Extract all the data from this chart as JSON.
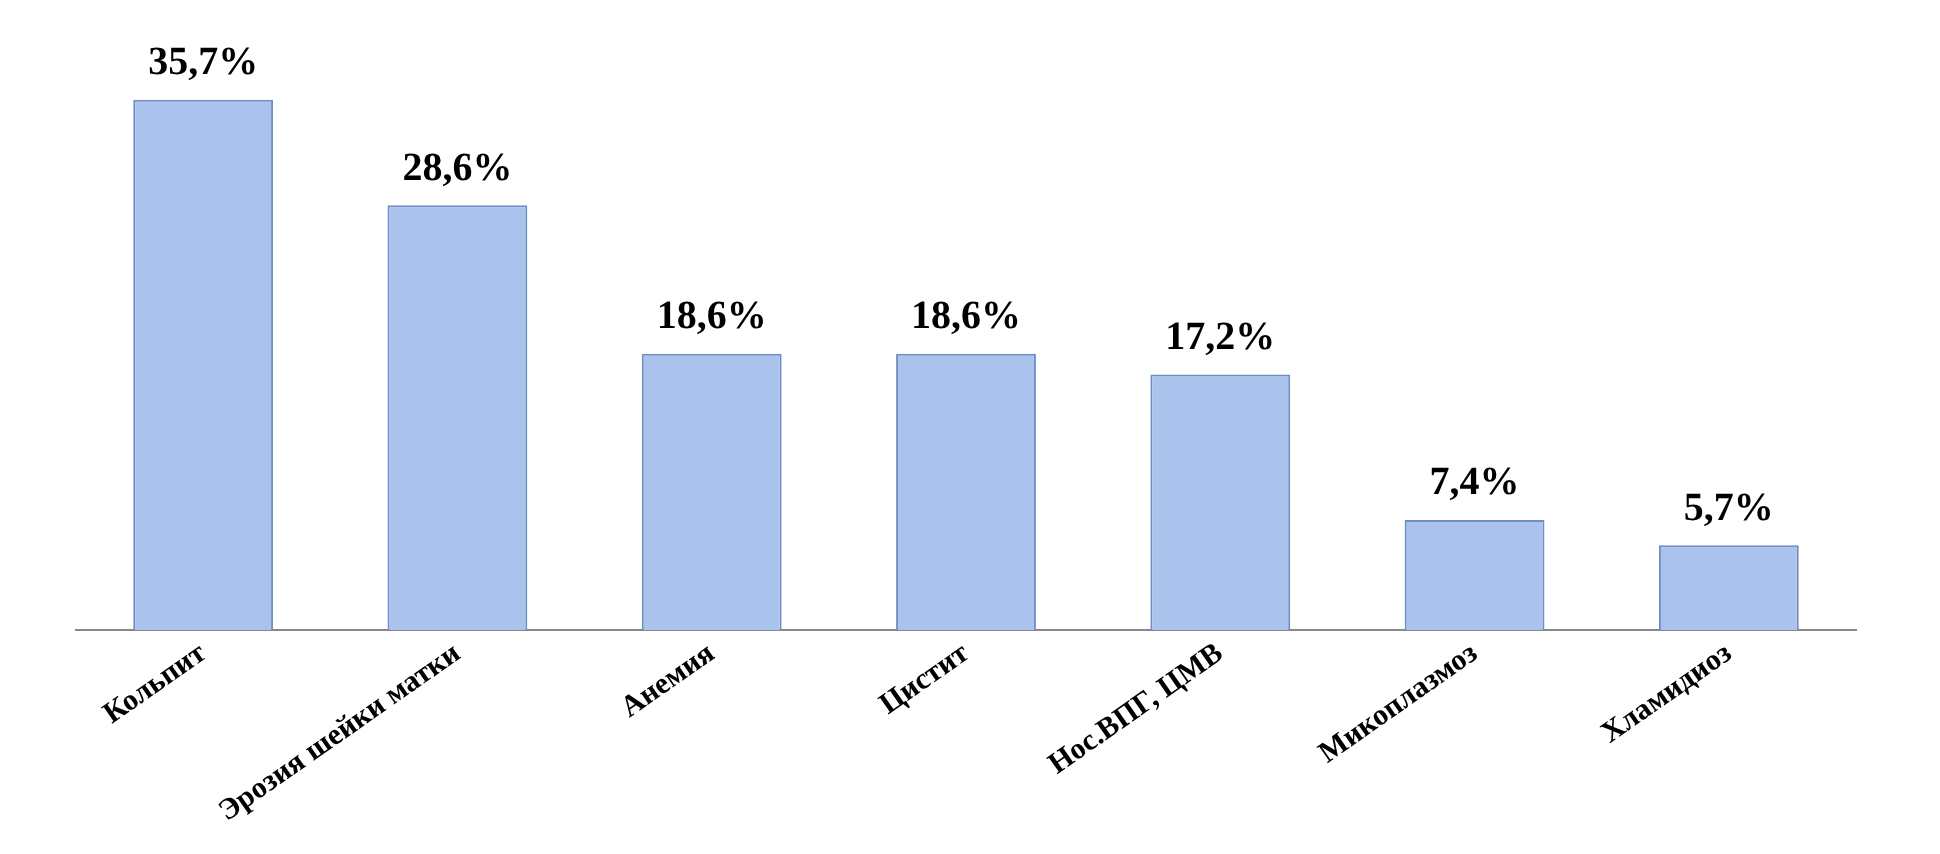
{
  "chart_data": {
    "type": "bar",
    "categories": [
      "Кольпит",
      "Эрозия шейки матки",
      "Анемия",
      "Цистит",
      "Нос.ВПГ, ЦМВ",
      "Микоплазмоз",
      "Хламидиоз"
    ],
    "values": [
      35.7,
      28.6,
      18.6,
      18.6,
      17.2,
      7.4,
      5.7
    ],
    "value_labels": [
      "35,7%",
      "28,6%",
      "18,6%",
      "18,6%",
      "17,2%",
      "7,4%",
      "5,7%"
    ],
    "color": "#a9c3ec",
    "grid": false,
    "legend": false
  }
}
